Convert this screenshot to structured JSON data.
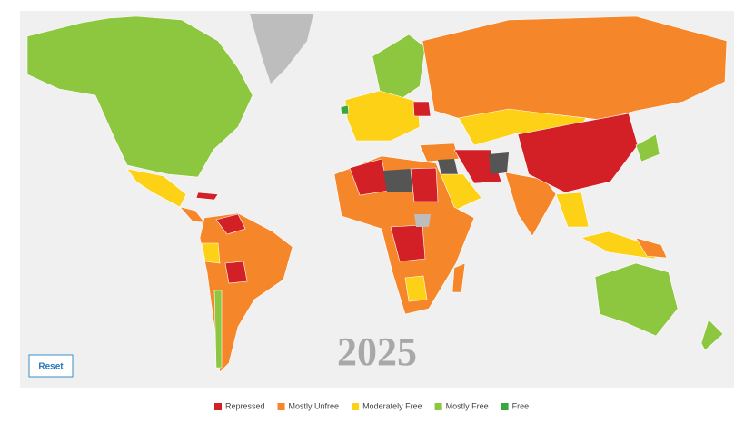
{
  "map": {
    "year": "2025",
    "reset": "Reset",
    "legend": [
      {
        "name": "Repressed",
        "color": "#d32027"
      },
      {
        "name": "Mostly Unfree",
        "color": "#f5862a"
      },
      {
        "name": "Moderately Free",
        "color": "#fcd116"
      },
      {
        "name": "Mostly Free",
        "color": "#8dc63f"
      },
      {
        "name": "Free",
        "color": "#3aa63e"
      }
    ]
  }
}
